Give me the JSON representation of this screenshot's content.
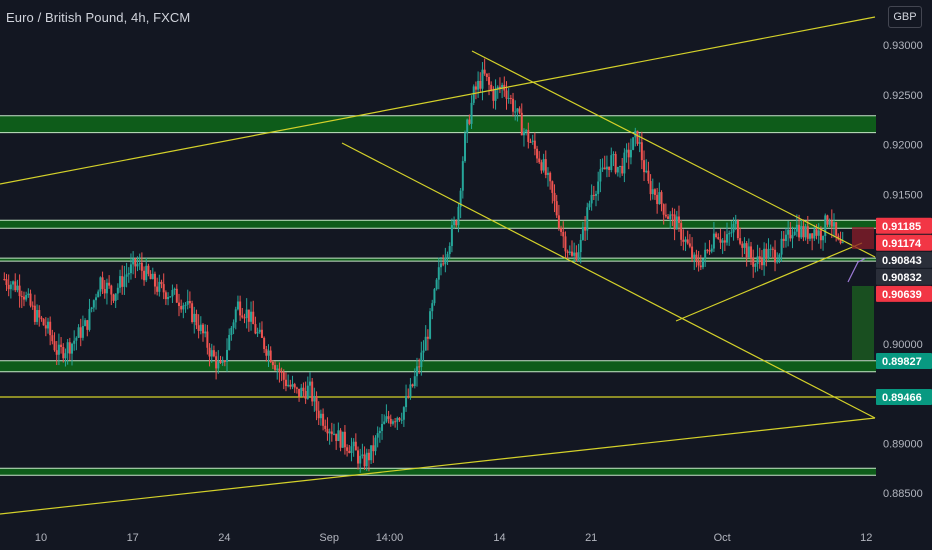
{
  "header": {
    "title": "Euro / British Pound, 4h, FXCM",
    "currency": "GBP"
  },
  "colors": {
    "background": "#131722",
    "up": "#26a69a",
    "down": "#ef5350",
    "zone_fill": "#0e5c1a",
    "zone_line": "#c8e6c9",
    "trendline": "#d4d12a",
    "axis_text": "#b2b5be",
    "green_label": "#089981",
    "red_label": "#f23645",
    "dark_label": "#2a2e39"
  },
  "chart_data": {
    "type": "candlestick",
    "title": "Euro / British Pound, 4h, FXCM",
    "ylim": [
      0.884,
      0.9365
    ],
    "y_ticks": [
      "0.93000",
      "0.92500",
      "0.92000",
      "0.91500",
      "0.90000",
      "0.89000",
      "0.88500"
    ],
    "x_ticks": [
      {
        "label": "10",
        "day": 10
      },
      {
        "label": "17",
        "day": 17
      },
      {
        "label": "24",
        "day": 24
      },
      {
        "label": "Sep",
        "day": 32
      },
      {
        "label": "14:00",
        "day": 36.6
      },
      {
        "label": "14",
        "day": 45
      },
      {
        "label": "21",
        "day": 52
      },
      {
        "label": "Oct",
        "day": 62
      },
      {
        "label": "12",
        "day": 73
      }
    ],
    "price_path": [
      [
        7.2,
        0.9065
      ],
      [
        8.5,
        0.9055
      ],
      [
        9.5,
        0.903
      ],
      [
        10.5,
        0.9015
      ],
      [
        11.3,
        0.899
      ],
      [
        12.3,
        0.9
      ],
      [
        13.5,
        0.902
      ],
      [
        14.5,
        0.9065
      ],
      [
        15.5,
        0.905
      ],
      [
        16.5,
        0.907
      ],
      [
        17.3,
        0.908
      ],
      [
        18,
        0.907
      ],
      [
        19,
        0.9055
      ],
      [
        20,
        0.905
      ],
      [
        21,
        0.904
      ],
      [
        22,
        0.902
      ],
      [
        23,
        0.899
      ],
      [
        23.8,
        0.8972
      ],
      [
        24.5,
        0.9015
      ],
      [
        25,
        0.904
      ],
      [
        25.8,
        0.903
      ],
      [
        26.5,
        0.901
      ],
      [
        27.5,
        0.899
      ],
      [
        28.5,
        0.8965
      ],
      [
        29.5,
        0.895
      ],
      [
        30.5,
        0.8955
      ],
      [
        31,
        0.8935
      ],
      [
        31.8,
        0.892
      ],
      [
        32.8,
        0.8905
      ],
      [
        33.8,
        0.8895
      ],
      [
        34.5,
        0.888
      ],
      [
        35.2,
        0.889
      ],
      [
        35.8,
        0.891
      ],
      [
        36.5,
        0.8925
      ],
      [
        37.5,
        0.893
      ],
      [
        38.3,
        0.8955
      ],
      [
        39,
        0.8985
      ],
      [
        39.5,
        0.901
      ],
      [
        40,
        0.9045
      ],
      [
        40.5,
        0.908
      ],
      [
        41.2,
        0.9105
      ],
      [
        41.8,
        0.913
      ],
      [
        42.3,
        0.92
      ],
      [
        43,
        0.925
      ],
      [
        43.8,
        0.927
      ],
      [
        44.5,
        0.925
      ],
      [
        45.3,
        0.926
      ],
      [
        46,
        0.924
      ],
      [
        46.8,
        0.9215
      ],
      [
        47.5,
        0.92
      ],
      [
        48.3,
        0.918
      ],
      [
        49,
        0.915
      ],
      [
        49.8,
        0.911
      ],
      [
        50.5,
        0.9085
      ],
      [
        51.2,
        0.91
      ],
      [
        52,
        0.915
      ],
      [
        52.8,
        0.917
      ],
      [
        53.5,
        0.9185
      ],
      [
        54.2,
        0.9175
      ],
      [
        55,
        0.9195
      ],
      [
        55.5,
        0.921
      ],
      [
        56.3,
        0.916
      ],
      [
        57,
        0.915
      ],
      [
        57.8,
        0.913
      ],
      [
        58.5,
        0.912
      ],
      [
        59.3,
        0.91
      ],
      [
        60,
        0.9078
      ],
      [
        60.8,
        0.909
      ],
      [
        61.5,
        0.9115
      ],
      [
        62.2,
        0.91
      ],
      [
        63,
        0.912
      ],
      [
        63.8,
        0.9095
      ],
      [
        64.5,
        0.908
      ],
      [
        65.2,
        0.909
      ],
      [
        66,
        0.909
      ],
      [
        66.8,
        0.91
      ],
      [
        67.5,
        0.912
      ],
      [
        68.3,
        0.911
      ],
      [
        69,
        0.9115
      ],
      [
        69.5,
        0.911
      ],
      [
        70.2,
        0.913
      ],
      [
        70.8,
        0.91
      ],
      [
        71.3,
        0.9092
      ]
    ],
    "horizontal_levels": [
      0.9118,
      0.9117,
      0.90843,
      0.90832,
      0.89827,
      0.89466
    ],
    "zones": [
      {
        "from": 0.9212,
        "to": 0.9229
      },
      {
        "from": 0.9116,
        "to": 0.9124
      },
      {
        "from": 0.9083,
        "to": 0.9086
      },
      {
        "from": 0.8972,
        "to": 0.8983
      },
      {
        "from": 0.8868,
        "to": 0.8875
      }
    ],
    "single_levels": [
      0.89466
    ],
    "price_labels": [
      {
        "text": "0.91185",
        "value": 0.91185,
        "style": "red"
      },
      {
        "text": "0.91174",
        "value": 0.91174,
        "style": "red"
      },
      {
        "text": "0.90843",
        "value": 0.90843,
        "style": "dark"
      },
      {
        "text": "0.90832",
        "value": 0.90832,
        "style": "dark"
      },
      {
        "text": "0.90639",
        "value": 0.90639,
        "style": "red"
      },
      {
        "text": "0.89827",
        "value": 0.89827,
        "style": "green"
      },
      {
        "text": "0.89466",
        "value": 0.89466,
        "style": "green"
      }
    ]
  }
}
